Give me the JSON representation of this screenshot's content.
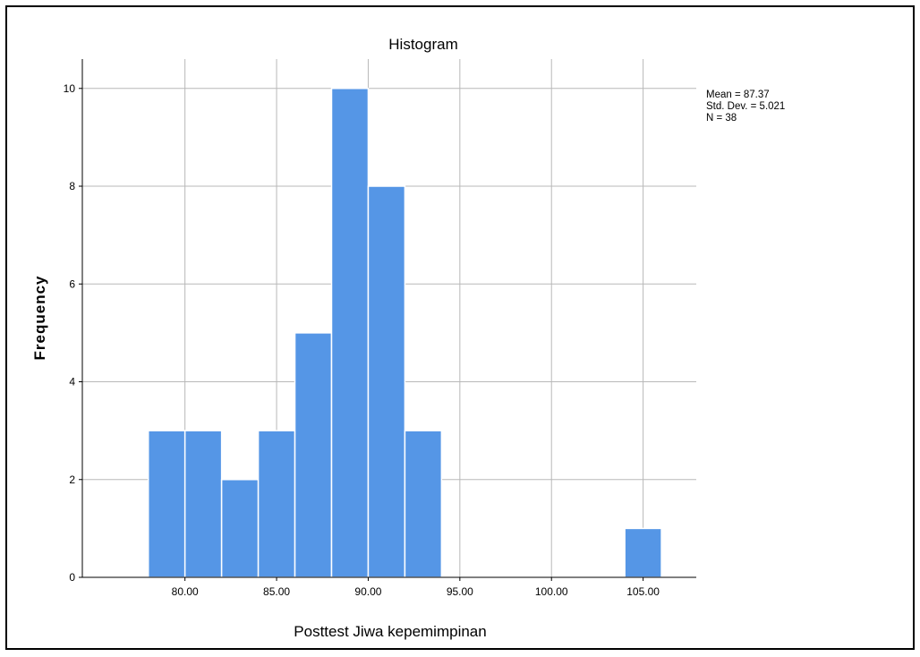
{
  "chart_data": {
    "type": "bar",
    "title": "Histogram",
    "xlabel": "Posttest Jiwa kepemimpinan",
    "ylabel": "Frequency",
    "bin_width": 2,
    "bins": [
      {
        "start": 78,
        "end": 80,
        "count": 3
      },
      {
        "start": 80,
        "end": 82,
        "count": 3
      },
      {
        "start": 82,
        "end": 84,
        "count": 2
      },
      {
        "start": 84,
        "end": 86,
        "count": 3
      },
      {
        "start": 86,
        "end": 88,
        "count": 5
      },
      {
        "start": 88,
        "end": 90,
        "count": 10
      },
      {
        "start": 90,
        "end": 92,
        "count": 8
      },
      {
        "start": 92,
        "end": 94,
        "count": 3
      },
      {
        "start": 104,
        "end": 106,
        "count": 1
      }
    ],
    "xlim": [
      74.4,
      107.9
    ],
    "ylim": [
      0,
      10.6
    ],
    "x_ticks": [
      80,
      85,
      90,
      95,
      100,
      105
    ],
    "x_tick_labels": [
      "80.00",
      "85.00",
      "90.00",
      "95.00",
      "100.00",
      "105.00"
    ],
    "y_ticks": [
      0,
      2,
      4,
      6,
      8,
      10
    ],
    "y_tick_labels": [
      "0",
      "2",
      "4",
      "6",
      "8",
      "10"
    ],
    "grid": true,
    "bar_color": "#5596e6",
    "stats": {
      "mean": "Mean = 87.37",
      "std": "Std. Dev. = 5.021",
      "n": "N = 38"
    }
  }
}
